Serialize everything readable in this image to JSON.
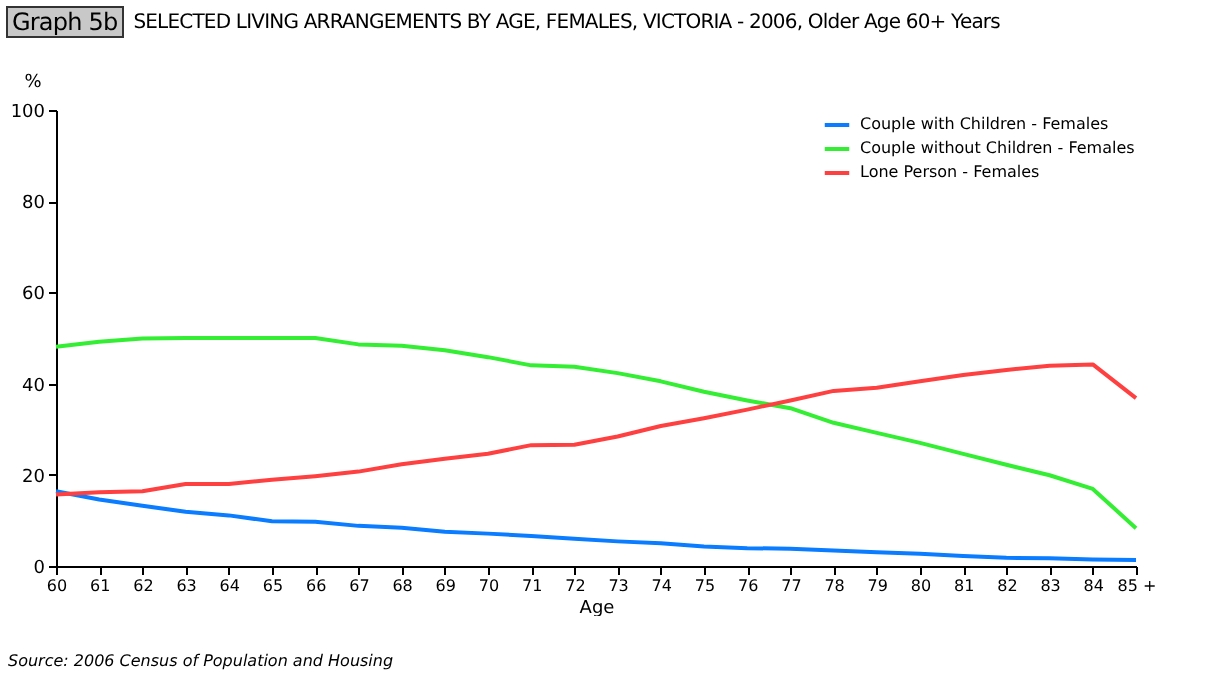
{
  "chart_data": {
    "type": "line",
    "title": "SELECTED LIVING ARRANGEMENTS BY AGE, FEMALES, VICTORIA - 2006, Older Age 60+ Years",
    "xlabel": "Age",
    "ylabel": "%",
    "annotations": [
      "Graph 5b",
      "Source: 2006 Census of Population and Housing"
    ],
    "categories": [
      "60",
      "61",
      "62",
      "63",
      "64",
      "65",
      "66",
      "67",
      "68",
      "69",
      "70",
      "71",
      "72",
      "73",
      "74",
      "75",
      "76",
      "77",
      "78",
      "79",
      "80",
      "81",
      "82",
      "83",
      "84",
      "85 +"
    ],
    "series": [
      {
        "name": "Couple with Children - Females",
        "color": "#0a7cff",
        "values": [
          16.4,
          14.6,
          13.2,
          11.9,
          11.1,
          9.8,
          9.7,
          8.8,
          8.4,
          7.5,
          7.1,
          6.6,
          6.0,
          5.4,
          5.0,
          4.3,
          3.9,
          3.8,
          3.4,
          3.0,
          2.7,
          2.2,
          1.8,
          1.7,
          1.4,
          1.3
        ]
      },
      {
        "name": "Couple without Children - Females",
        "color": "#33ee33",
        "values": [
          48.1,
          49.2,
          49.9,
          50,
          50,
          50,
          50,
          48.6,
          48.3,
          47.3,
          45.8,
          44,
          43.7,
          42.3,
          40.5,
          38.2,
          36.3,
          34.6,
          31.4,
          29.2,
          27.0,
          24.6,
          22.2,
          19.9,
          16.9,
          8.3
        ]
      },
      {
        "name": "Lone Person - Females",
        "color": "#ff4040",
        "values": [
          15.7,
          16.2,
          16.4,
          18.0,
          18.0,
          18.9,
          19.7,
          20.7,
          22.3,
          23.5,
          24.6,
          26.5,
          26.6,
          28.4,
          30.7,
          32.4,
          34.3,
          36.3,
          38.4,
          39.1,
          40.5,
          41.9,
          43.0,
          43.9,
          44.2,
          36.8
        ]
      }
    ],
    "ylim": [
      0,
      100
    ],
    "yticks": [
      0,
      20,
      40,
      60,
      80,
      100
    ],
    "grid": false,
    "legend": "top right",
    "marker": "none",
    "line_style": "solid"
  }
}
